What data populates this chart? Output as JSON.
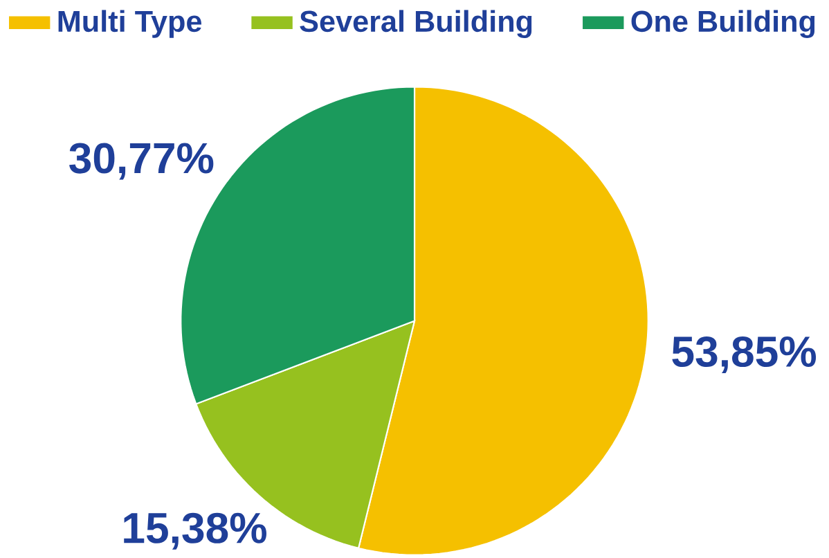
{
  "chart_data": {
    "type": "pie",
    "categories": [
      "Multi Type",
      "Several Building",
      "One Building"
    ],
    "values": [
      53.85,
      15.38,
      30.77
    ],
    "colors": [
      "#f5c000",
      "#96c11f",
      "#1b9a5c"
    ],
    "value_labels": [
      "53,85%",
      "15,38%",
      "30,77%"
    ],
    "legend": "top"
  }
}
